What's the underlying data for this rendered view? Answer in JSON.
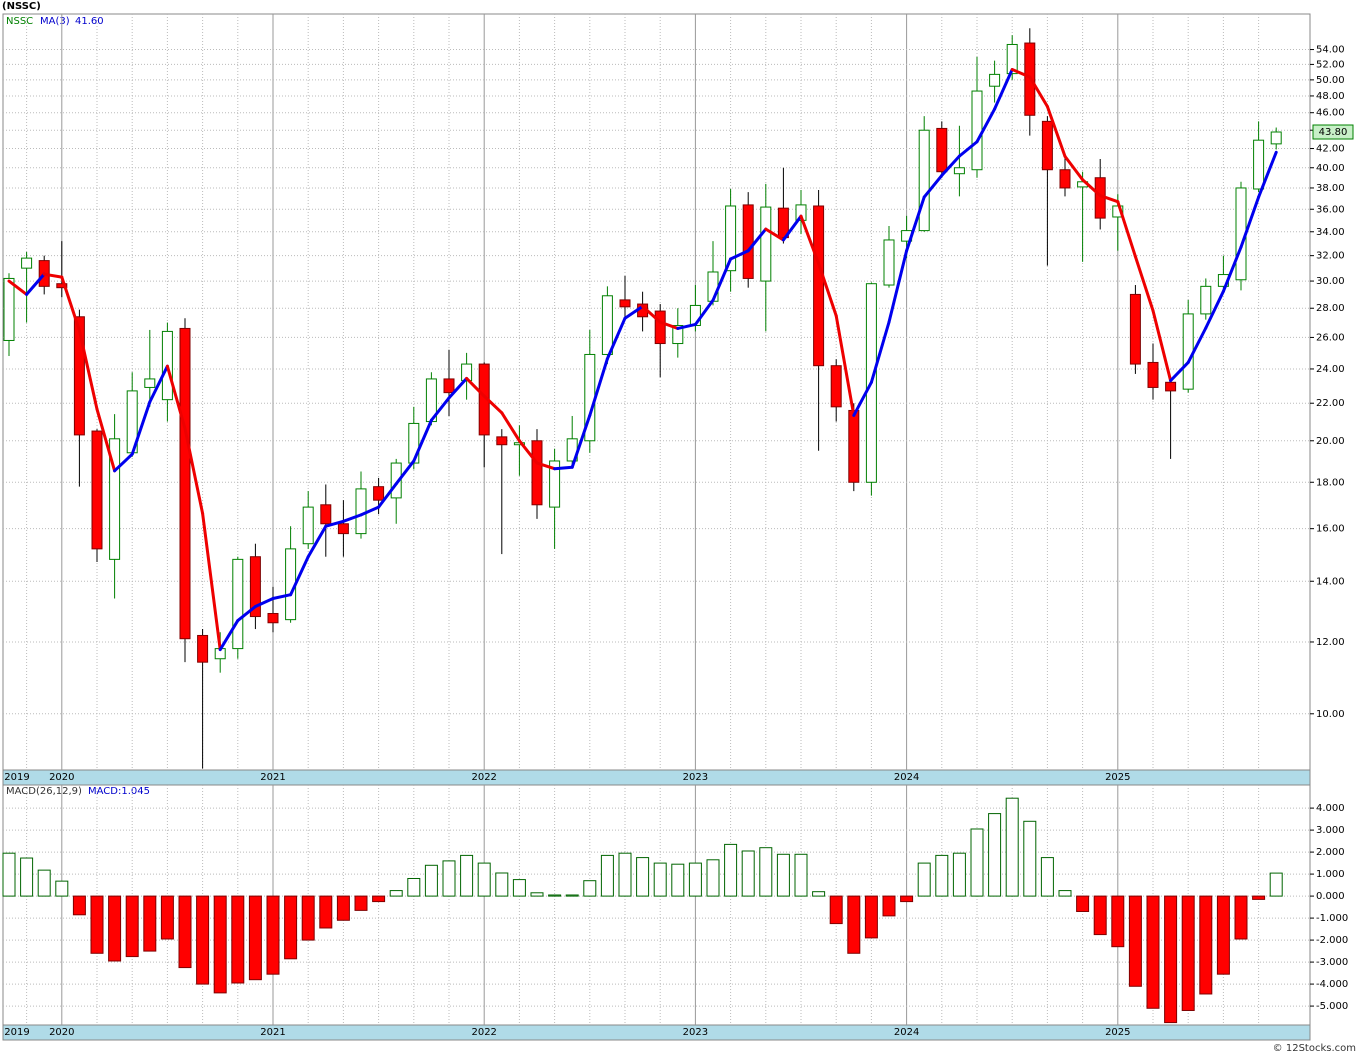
{
  "chart_data": [
    {
      "type": "candlestick",
      "title": "(NSSC)",
      "symbol": "NSSC",
      "ma_name": "MA(3)",
      "ma_label": "41.60",
      "last_label": "43.80",
      "categories": [
        "2019",
        null,
        null,
        "2020",
        null,
        null,
        null,
        null,
        null,
        null,
        null,
        null,
        null,
        null,
        null,
        "2021",
        null,
        null,
        null,
        null,
        null,
        null,
        null,
        null,
        null,
        null,
        null,
        "2022",
        null,
        null,
        null,
        null,
        null,
        null,
        null,
        null,
        null,
        null,
        null,
        "2023",
        null,
        null,
        null,
        null,
        null,
        null,
        null,
        null,
        null,
        null,
        null,
        "2024",
        null,
        null,
        null,
        null,
        null,
        null,
        null,
        null,
        null,
        null,
        null,
        "2025",
        null,
        null,
        null,
        null,
        null,
        null,
        null,
        null,
        null
      ],
      "open": [
        25.8,
        31.0,
        31.6,
        29.8,
        27.4,
        20.5,
        14.8,
        19.4,
        22.9,
        22.2,
        26.6,
        12.2,
        11.5,
        11.8,
        14.9,
        12.9,
        12.7,
        15.4,
        17.0,
        16.2,
        15.8,
        17.8,
        17.3,
        18.9,
        21.0,
        23.4,
        23.3,
        24.3,
        20.2,
        19.8,
        20.0,
        16.9,
        19.0,
        20.0,
        24.9,
        28.6,
        28.3,
        27.8,
        25.6,
        26.8,
        28.5,
        30.8,
        36.4,
        30.0,
        36.1,
        35.0,
        36.3,
        24.2,
        21.6,
        18.0,
        29.7,
        33.2,
        34.1,
        44.2,
        39.4,
        39.8,
        49.2,
        50.8,
        54.9,
        45.0,
        39.8,
        38.1,
        39.0,
        35.3,
        29.0,
        24.4,
        23.2,
        22.8,
        27.6,
        29.6,
        30.1,
        37.9,
        42.5
      ],
      "high": [
        30.6,
        32.3,
        32.0,
        33.2,
        27.9,
        20.6,
        21.4,
        23.8,
        26.5,
        27.0,
        27.3,
        12.4,
        12.3,
        14.9,
        15.4,
        13.8,
        16.1,
        17.6,
        17.9,
        17.2,
        18.5,
        18.2,
        19.1,
        21.8,
        23.8,
        25.2,
        25.0,
        24.4,
        20.6,
        20.8,
        20.6,
        19.6,
        21.3,
        26.5,
        29.6,
        30.4,
        29.2,
        28.3,
        28.0,
        29.7,
        33.2,
        37.9,
        37.6,
        38.4,
        40.0,
        37.8,
        37.8,
        24.6,
        22.0,
        29.9,
        34.5,
        35.4,
        45.6,
        45.0,
        44.5,
        53.0,
        52.5,
        56.0,
        57.0,
        45.6,
        41.3,
        39.6,
        40.9,
        37.4,
        29.7,
        25.6,
        23.4,
        28.6,
        30.2,
        32.0,
        38.6,
        45.0,
        44.3
      ],
      "low": [
        24.8,
        27.0,
        29.0,
        28.8,
        17.8,
        14.7,
        13.4,
        19.2,
        21.8,
        21.0,
        11.4,
        8.7,
        11.1,
        11.5,
        12.4,
        12.3,
        12.6,
        15.2,
        14.9,
        14.9,
        15.6,
        16.6,
        16.2,
        18.6,
        20.8,
        21.3,
        22.2,
        18.7,
        15.0,
        18.3,
        16.4,
        15.2,
        18.7,
        19.4,
        24.3,
        27.4,
        26.4,
        23.5,
        24.7,
        26.4,
        28.2,
        29.2,
        29.5,
        26.4,
        33.0,
        33.8,
        19.5,
        21.0,
        17.6,
        17.4,
        29.5,
        31.8,
        34.0,
        39.0,
        37.2,
        39.0,
        47.2,
        50.0,
        43.4,
        31.2,
        37.2,
        31.5,
        34.2,
        32.4,
        23.7,
        22.2,
        19.1,
        22.6,
        27.2,
        29.4,
        29.3,
        37.6,
        41.9
      ],
      "close": [
        30.2,
        31.8,
        29.6,
        29.5,
        20.3,
        15.2,
        20.1,
        22.7,
        23.4,
        26.4,
        12.1,
        11.4,
        11.8,
        14.8,
        12.8,
        12.6,
        15.2,
        16.9,
        16.2,
        15.8,
        17.7,
        17.2,
        18.9,
        20.9,
        23.4,
        22.6,
        24.3,
        20.3,
        19.8,
        19.9,
        17.0,
        19.0,
        20.1,
        24.9,
        28.9,
        28.1,
        27.4,
        25.6,
        26.8,
        28.2,
        30.7,
        36.3,
        30.2,
        36.2,
        33.5,
        36.4,
        24.2,
        21.8,
        18.0,
        29.8,
        33.3,
        34.1,
        44.0,
        39.6,
        40.0,
        48.6,
        50.7,
        54.7,
        45.7,
        39.8,
        38.0,
        38.6,
        35.2,
        36.3,
        24.3,
        22.9,
        22.7,
        27.6,
        29.6,
        30.5,
        38.0,
        42.9,
        43.8
      ],
      "ma": [
        30.0,
        29.0,
        30.53,
        30.3,
        26.47,
        21.67,
        18.53,
        19.33,
        22.07,
        24.17,
        20.63,
        16.63,
        11.77,
        12.67,
        13.13,
        13.4,
        13.53,
        14.9,
        16.1,
        16.3,
        16.57,
        16.9,
        17.93,
        19.0,
        21.07,
        22.3,
        23.43,
        22.4,
        21.47,
        20.0,
        18.9,
        18.63,
        18.7,
        21.33,
        24.63,
        27.3,
        28.13,
        27.03,
        26.6,
        26.87,
        28.57,
        31.73,
        32.4,
        34.23,
        33.3,
        35.37,
        31.37,
        27.47,
        21.33,
        23.2,
        27.03,
        32.4,
        37.13,
        39.23,
        41.2,
        42.73,
        46.43,
        51.33,
        50.37,
        46.73,
        41.17,
        38.8,
        37.27,
        36.7,
        31.93,
        27.83,
        23.3,
        24.4,
        26.63,
        29.23,
        32.7,
        37.13,
        41.6
      ],
      "ylim": [
        8.67,
        59.1
      ],
      "log_scale": true,
      "grid": true,
      "yticks": [
        {
          "value": 10,
          "label": "10.00"
        },
        {
          "value": 12,
          "label": "12.00"
        },
        {
          "value": 14,
          "label": "14.00"
        },
        {
          "value": 16,
          "label": "16.00"
        },
        {
          "value": 18,
          "label": "18.00"
        },
        {
          "value": 20,
          "label": "20.00"
        },
        {
          "value": 22,
          "label": "22.00"
        },
        {
          "value": 24,
          "label": "24.00"
        },
        {
          "value": 26,
          "label": "26.00"
        },
        {
          "value": 28,
          "label": "28.00"
        },
        {
          "value": 30,
          "label": "30.00"
        },
        {
          "value": 32,
          "label": "32.00"
        },
        {
          "value": 34,
          "label": "34.00"
        },
        {
          "value": 36,
          "label": "36.00"
        },
        {
          "value": 38,
          "label": "38.00"
        },
        {
          "value": 40,
          "label": "40.00"
        },
        {
          "value": 42,
          "label": "42.00"
        },
        {
          "value": 44,
          "label": "44.00"
        },
        {
          "value": 46,
          "label": "46.00"
        },
        {
          "value": 48,
          "label": "48.00"
        },
        {
          "value": 50,
          "label": "50.00"
        },
        {
          "value": 52,
          "label": "52.00"
        },
        {
          "value": 54,
          "label": "54.00"
        }
      ],
      "up_color": "#008000",
      "down_color": "#ff0000",
      "ma_up_color": "#0000ee",
      "ma_down_color": "#ee0000"
    },
    {
      "type": "bar",
      "title": "MACD(26,12,9)",
      "value_label": "MACD:1.045",
      "values": [
        1.95,
        1.73,
        1.18,
        0.68,
        -0.85,
        -2.6,
        -2.95,
        -2.75,
        -2.5,
        -1.95,
        -3.25,
        -4.0,
        -4.4,
        -3.95,
        -3.8,
        -3.55,
        -2.85,
        -2.0,
        -1.45,
        -1.1,
        -0.65,
        -0.25,
        0.25,
        0.8,
        1.4,
        1.6,
        1.85,
        1.5,
        1.05,
        0.75,
        0.15,
        0.05,
        0.05,
        0.7,
        1.85,
        1.95,
        1.75,
        1.5,
        1.45,
        1.5,
        1.65,
        2.35,
        2.05,
        2.2,
        1.9,
        1.9,
        0.2,
        -1.25,
        -2.6,
        -1.9,
        -0.9,
        -0.25,
        1.5,
        1.85,
        1.95,
        3.05,
        3.75,
        4.45,
        3.4,
        1.75,
        0.25,
        -0.7,
        -1.75,
        -2.3,
        -4.1,
        -5.1,
        -5.75,
        -5.2,
        -4.45,
        -3.55,
        -1.95,
        -0.15,
        1.045
      ],
      "ylim": [
        -5.86,
        5.05
      ],
      "grid": true,
      "yticks": [
        {
          "value": 4,
          "label": "4.000"
        },
        {
          "value": 3,
          "label": "3.000"
        },
        {
          "value": 2,
          "label": "2.000"
        },
        {
          "value": 1,
          "label": "1.000"
        },
        {
          "value": 0,
          "label": "0.000"
        },
        {
          "value": -1,
          "label": "-1.000"
        },
        {
          "value": -2,
          "label": "-2.000"
        },
        {
          "value": -3,
          "label": "-3.000"
        },
        {
          "value": -4,
          "label": "-4.000"
        },
        {
          "value": -5,
          "label": "-5.000"
        }
      ],
      "pos_color": "#006400",
      "neg_color": "#ff0000"
    }
  ],
  "footer": "© 12Stocks.com"
}
